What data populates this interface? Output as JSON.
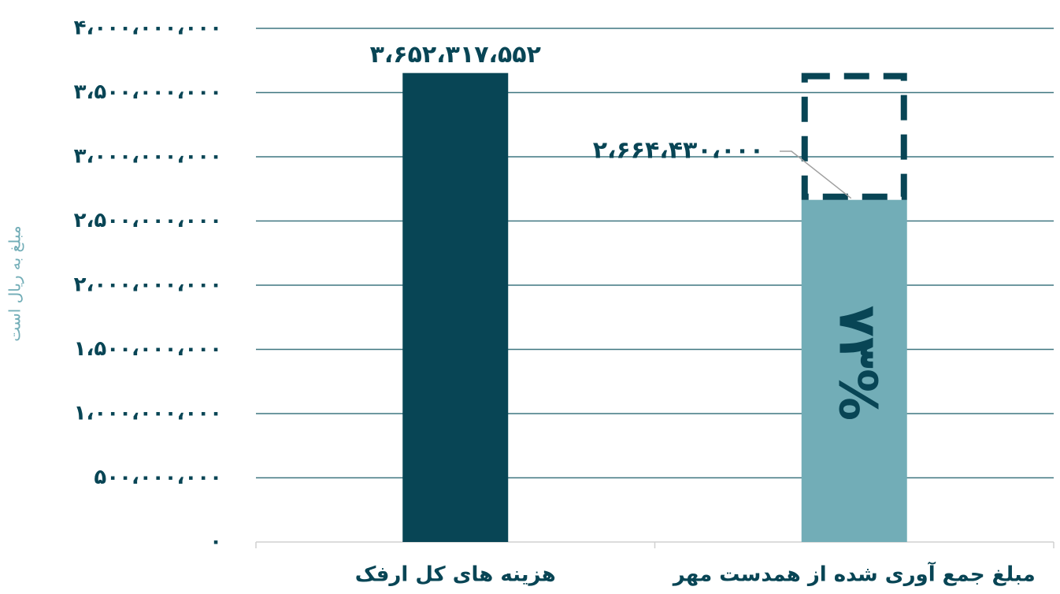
{
  "chart_data": {
    "type": "bar",
    "ylabel": "مبلغ به ریال است",
    "categories": [
      "هزینه های کل ارفک",
      "مبلغ جمع آوری شده از همدست مهر"
    ],
    "values": [
      3652317552,
      2664430000
    ],
    "value_labels": [
      "۳،۶۵۲،۳۱۷،۵۵۲",
      "۲،۶۶۴،۴۳۰،۰۰۰"
    ],
    "colors": [
      "#084555",
      "#72adb7"
    ],
    "annotation": "۷۳%",
    "ylim": [
      0,
      4000000000
    ],
    "yticks": [
      {
        "value": 0,
        "label": "۰"
      },
      {
        "value": 500000000,
        "label": "۵۰۰،۰۰۰،۰۰۰"
      },
      {
        "value": 1000000000,
        "label": "۱،۰۰۰،۰۰۰،۰۰۰"
      },
      {
        "value": 1500000000,
        "label": "۱،۵۰۰،۰۰۰،۰۰۰"
      },
      {
        "value": 2000000000,
        "label": "۲،۰۰۰،۰۰۰،۰۰۰"
      },
      {
        "value": 2500000000,
        "label": "۲،۵۰۰،۰۰۰،۰۰۰"
      },
      {
        "value": 3000000000,
        "label": "۳،۰۰۰،۰۰۰،۰۰۰"
      },
      {
        "value": 3500000000,
        "label": "۳،۵۰۰،۰۰۰،۰۰۰"
      },
      {
        "value": 4000000000,
        "label": "۴،۰۰۰،۰۰۰،۰۰۰"
      }
    ],
    "grid": true
  }
}
